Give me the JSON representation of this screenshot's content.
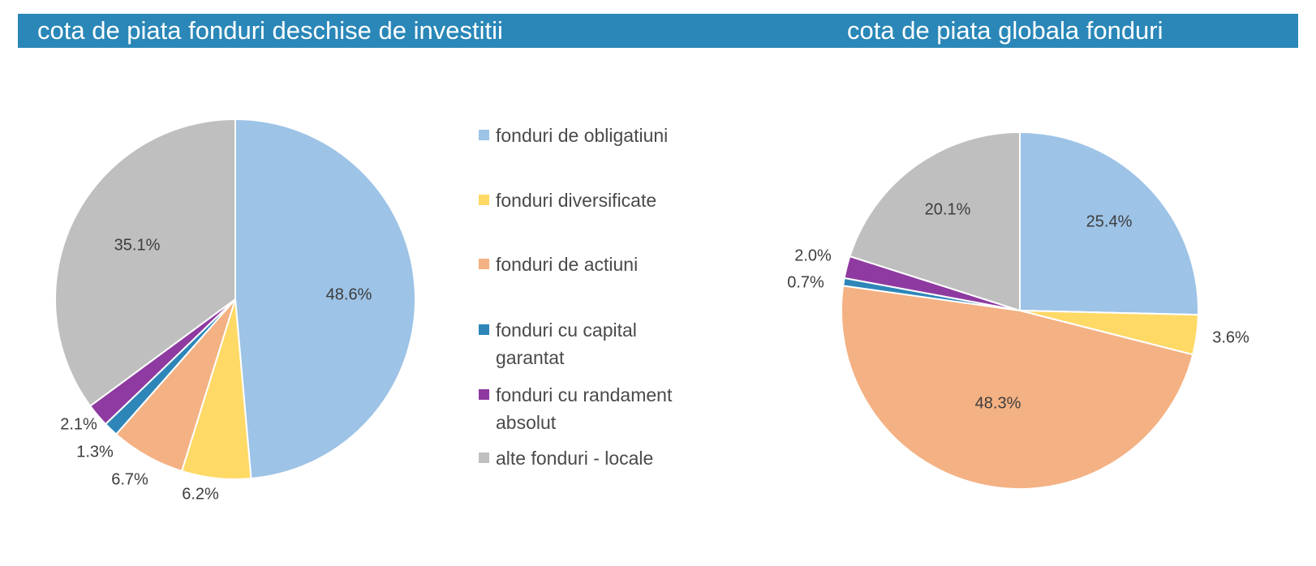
{
  "header": {
    "left_title": "cota de piata fonduri deschise de investitii",
    "right_title": "cota de piata globala fonduri"
  },
  "colors": {
    "banner": "#2a87b8",
    "banner_text": "#ffffff",
    "slice_border": "#ffffff",
    "label_text": "#3d3d3d"
  },
  "legend": {
    "items": [
      {
        "label": "fonduri de obligatiuni",
        "color": "#9dc3e6"
      },
      {
        "label": "fonduri diversificate",
        "color": "#ffd966"
      },
      {
        "label": "fonduri de actiuni",
        "color": "#f4b183"
      },
      {
        "label": "fonduri cu capital garantat",
        "color": "#2e86b8"
      },
      {
        "label": "fonduri cu randament absolut",
        "color": "#8e3aa0"
      },
      {
        "label": "alte fonduri - locale",
        "color": "#bfbfbf"
      }
    ]
  },
  "chart_data": [
    {
      "type": "pie",
      "title": "cota de piata fonduri deschise de investitii",
      "categories": [
        "fonduri de obligatiuni",
        "fonduri diversificate",
        "fonduri de actiuni",
        "fonduri cu capital garantat",
        "fonduri cu randament absolut",
        "alte fonduri - locale"
      ],
      "values": [
        48.6,
        6.2,
        6.7,
        1.3,
        2.1,
        35.1
      ],
      "labels": [
        "48.6%",
        "6.2%",
        "6.7%",
        "1.3%",
        "2.1%",
        "35.1%"
      ],
      "colors": [
        "#9dc3e6",
        "#ffd966",
        "#f4b183",
        "#2e86b8",
        "#8e3aa0",
        "#bfbfbf"
      ],
      "start_angle_deg": 0,
      "direction": "clockwise"
    },
    {
      "type": "pie",
      "title": "cota de piata globala fonduri",
      "categories": [
        "fonduri de obligatiuni",
        "fonduri diversificate",
        "fonduri de actiuni",
        "fonduri cu capital garantat",
        "fonduri cu randament absolut",
        "alte fonduri - locale"
      ],
      "values": [
        25.4,
        3.6,
        48.3,
        0.7,
        2.0,
        20.1
      ],
      "labels": [
        "25.4%",
        "3.6%",
        "48.3%",
        "0.7%",
        "2.0%",
        "20.1%"
      ],
      "colors": [
        "#9dc3e6",
        "#ffd966",
        "#f4b183",
        "#2e86b8",
        "#8e3aa0",
        "#bfbfbf"
      ],
      "start_angle_deg": 0,
      "direction": "clockwise"
    }
  ]
}
